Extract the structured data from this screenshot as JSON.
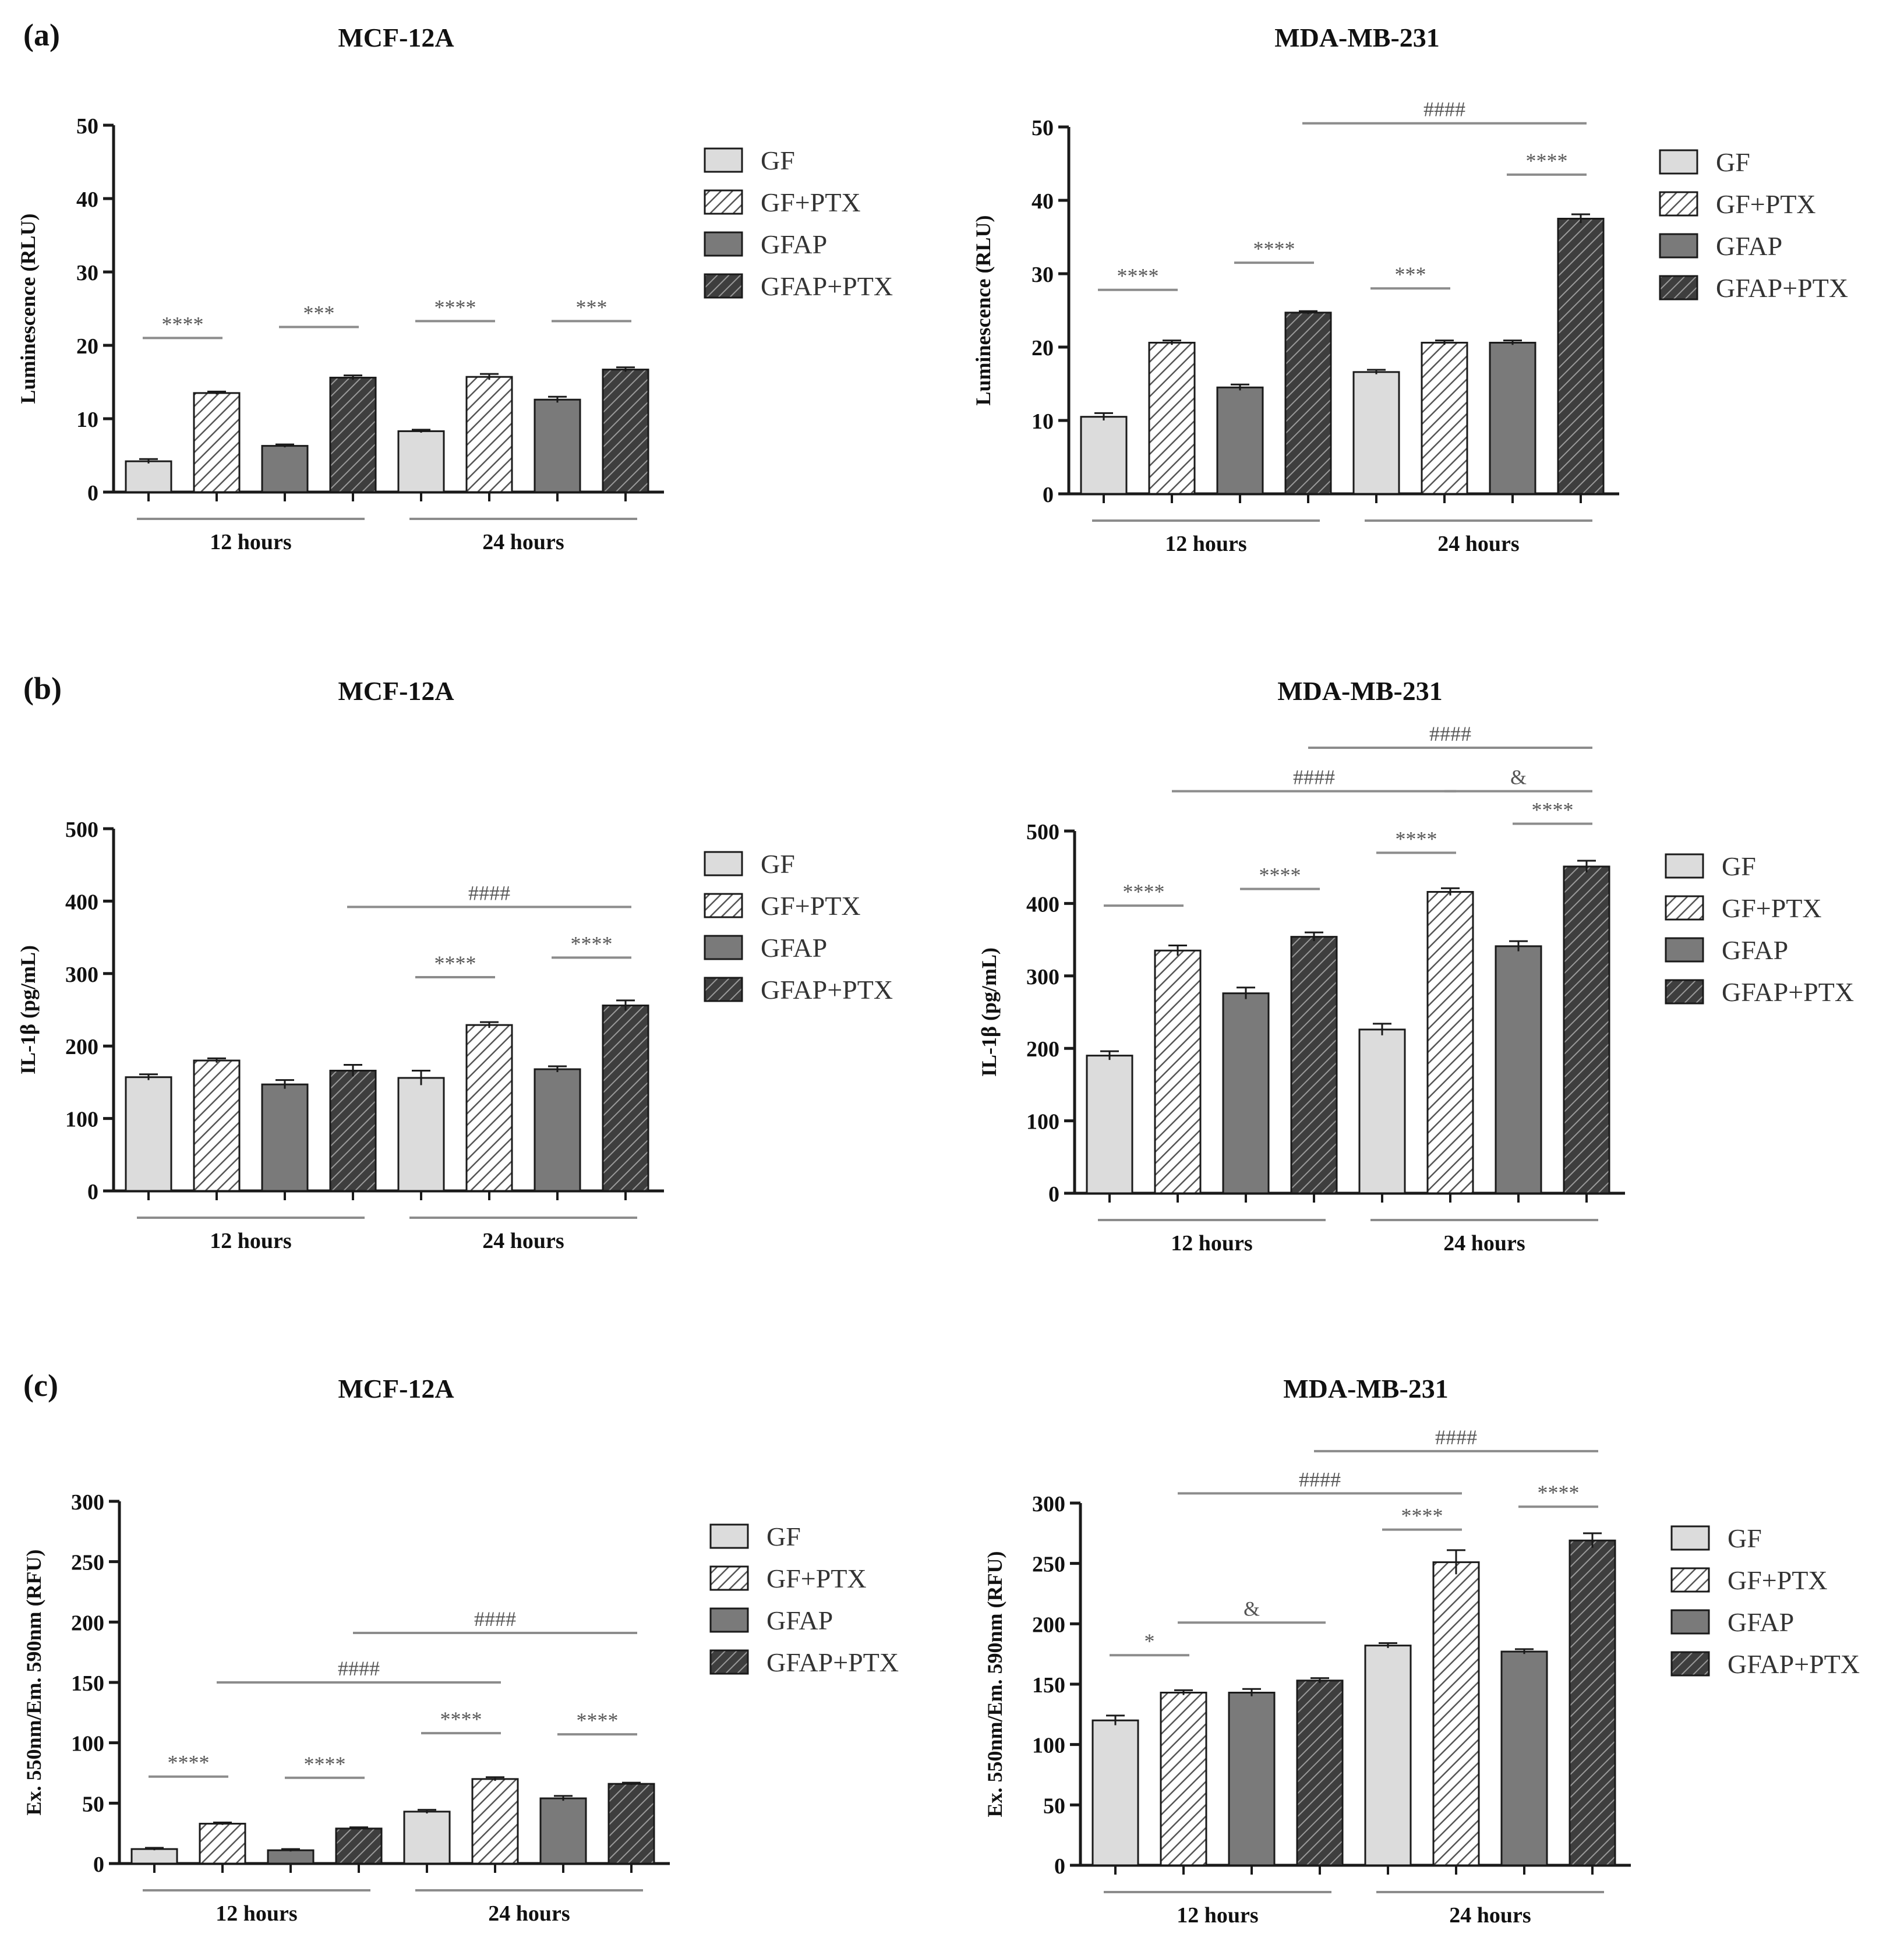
{
  "figure": {
    "legend_labels": [
      "GF",
      "GF+PTX",
      "GFAP",
      "GFAP+PTX"
    ],
    "colors": {
      "light": "#dcdcdc",
      "dark": "#7a7a7a",
      "stroke": "#1a1a1a",
      "line": "#8c8c8c"
    }
  },
  "chart_data": [
    {
      "id": "a-mcf",
      "panel_label": "(a)",
      "type": "bar",
      "title": "MCF-12A",
      "ylabel": "Luminescence (RLU)",
      "ylim": [
        0,
        50
      ],
      "yticks": [
        0,
        10,
        20,
        30,
        40,
        50
      ],
      "groups": [
        "12 hours",
        "24 hours"
      ],
      "series": [
        {
          "name": "GF",
          "values": [
            4.2,
            8.3
          ],
          "errors": [
            0.3,
            0.2
          ]
        },
        {
          "name": "GF+PTX",
          "values": [
            13.5,
            15.7
          ],
          "errors": [
            0.2,
            0.4
          ]
        },
        {
          "name": "GFAP",
          "values": [
            6.3,
            12.6
          ],
          "errors": [
            0.2,
            0.4
          ]
        },
        {
          "name": "GFAP+PTX",
          "values": [
            15.6,
            16.7
          ],
          "errors": [
            0.3,
            0.3
          ]
        }
      ],
      "annotations": [
        {
          "text": "****",
          "from": 0,
          "to": 1,
          "y": 21
        },
        {
          "text": "***",
          "from": 2,
          "to": 3,
          "y": 22.5
        },
        {
          "text": "****",
          "from": 4,
          "to": 5,
          "y": 23.3
        },
        {
          "text": "***",
          "from": 6,
          "to": 7,
          "y": 23.3
        }
      ]
    },
    {
      "id": "a-mda",
      "type": "bar",
      "title": "MDA-MB-231",
      "ylabel": "Luminescence (RLU)",
      "ylim": [
        0,
        50
      ],
      "yticks": [
        0,
        10,
        20,
        30,
        40,
        50
      ],
      "groups": [
        "12 hours",
        "24 hours"
      ],
      "series": [
        {
          "name": "GF",
          "values": [
            10.5,
            16.6
          ],
          "errors": [
            0.5,
            0.3
          ]
        },
        {
          "name": "GF+PTX",
          "values": [
            20.6,
            20.6
          ],
          "errors": [
            0.3,
            0.3
          ]
        },
        {
          "name": "GFAP",
          "values": [
            14.5,
            20.6
          ],
          "errors": [
            0.4,
            0.3
          ]
        },
        {
          "name": "GFAP+PTX",
          "values": [
            24.7,
            37.5
          ],
          "errors": [
            0.2,
            0.6
          ]
        }
      ],
      "annotations": [
        {
          "text": "****",
          "from": 0,
          "to": 1,
          "y": 27.8
        },
        {
          "text": "****",
          "from": 2,
          "to": 3,
          "y": 31.5
        },
        {
          "text": "***",
          "from": 4,
          "to": 5,
          "y": 28
        },
        {
          "text": "****",
          "from": 6,
          "to": 7,
          "y": 43.5
        },
        {
          "text": "####",
          "from": 3,
          "to": 7,
          "y": 50.5
        }
      ]
    },
    {
      "id": "b-mcf",
      "panel_label": "(b)",
      "type": "bar",
      "title": "MCF-12A",
      "ylabel": "IL-1β (pg/mL)",
      "ylim": [
        0,
        500
      ],
      "yticks": [
        0,
        100,
        200,
        300,
        400,
        500
      ],
      "groups": [
        "12 hours",
        "24 hours"
      ],
      "series": [
        {
          "name": "GF",
          "values": [
            157,
            156
          ],
          "errors": [
            4,
            10
          ]
        },
        {
          "name": "GF+PTX",
          "values": [
            180,
            229
          ],
          "errors": [
            3,
            4
          ]
        },
        {
          "name": "GFAP",
          "values": [
            147,
            168
          ],
          "errors": [
            6,
            4
          ]
        },
        {
          "name": "GFAP+PTX",
          "values": [
            166,
            256
          ],
          "errors": [
            8,
            7
          ]
        }
      ],
      "annotations": [
        {
          "text": "****",
          "from": 4,
          "to": 5,
          "y": 295
        },
        {
          "text": "****",
          "from": 6,
          "to": 7,
          "y": 322
        },
        {
          "text": "####",
          "from": 3,
          "to": 7,
          "y": 392
        }
      ]
    },
    {
      "id": "b-mda",
      "type": "bar",
      "title": "MDA-MB-231",
      "ylabel": "IL-1β (pg/mL)",
      "ylim": [
        0,
        500
      ],
      "yticks": [
        0,
        100,
        200,
        300,
        400,
        500
      ],
      "groups": [
        "12 hours",
        "24 hours"
      ],
      "series": [
        {
          "name": "GF",
          "values": [
            190,
            226
          ],
          "errors": [
            6,
            8
          ]
        },
        {
          "name": "GF+PTX",
          "values": [
            335,
            416
          ],
          "errors": [
            7,
            5
          ]
        },
        {
          "name": "GFAP",
          "values": [
            276,
            341
          ],
          "errors": [
            8,
            7
          ]
        },
        {
          "name": "GFAP+PTX",
          "values": [
            354,
            451
          ],
          "errors": [
            6,
            8
          ]
        }
      ],
      "annotations": [
        {
          "text": "****",
          "from": 0,
          "to": 1,
          "y": 397
        },
        {
          "text": "****",
          "from": 2,
          "to": 3,
          "y": 420
        },
        {
          "text": "****",
          "from": 4,
          "to": 5,
          "y": 470
        },
        {
          "text": "****",
          "from": 6,
          "to": 7,
          "y": 510
        },
        {
          "text": "&",
          "from": 5,
          "to": 7,
          "y": 555
        },
        {
          "text": "####",
          "from": 1,
          "to": 5,
          "y": 555
        },
        {
          "text": "####",
          "from": 3,
          "to": 7,
          "y": 615
        }
      ]
    },
    {
      "id": "c-mcf",
      "panel_label": "(c)",
      "type": "bar",
      "title": "MCF-12A",
      "ylabel": "Ex. 550nm/Em. 590nm (RFU)",
      "ylim": [
        0,
        300
      ],
      "yticks": [
        0,
        50,
        100,
        150,
        200,
        250,
        300
      ],
      "groups": [
        "12 hours",
        "24 hours"
      ],
      "series": [
        {
          "name": "GF",
          "values": [
            12,
            43
          ],
          "errors": [
            1,
            1.5
          ]
        },
        {
          "name": "GF+PTX",
          "values": [
            33,
            70
          ],
          "errors": [
            1,
            1.5
          ]
        },
        {
          "name": "GFAP",
          "values": [
            11,
            54
          ],
          "errors": [
            1,
            2
          ]
        },
        {
          "name": "GFAP+PTX",
          "values": [
            29,
            66
          ],
          "errors": [
            1,
            1
          ]
        }
      ],
      "annotations": [
        {
          "text": "****",
          "from": 0,
          "to": 1,
          "y": 72
        },
        {
          "text": "****",
          "from": 2,
          "to": 3,
          "y": 71
        },
        {
          "text": "****",
          "from": 4,
          "to": 5,
          "y": 108
        },
        {
          "text": "****",
          "from": 6,
          "to": 7,
          "y": 107
        },
        {
          "text": "####",
          "from": 1,
          "to": 5,
          "y": 150
        },
        {
          "text": "####",
          "from": 3,
          "to": 7,
          "y": 191
        }
      ]
    },
    {
      "id": "c-mda",
      "type": "bar",
      "title": "MDA-MB-231",
      "ylabel": "Ex. 550nm/Em. 590nm (RFU)",
      "ylim": [
        0,
        300
      ],
      "yticks": [
        0,
        50,
        100,
        150,
        200,
        250,
        300
      ],
      "groups": [
        "12 hours",
        "24 hours"
      ],
      "series": [
        {
          "name": "GF",
          "values": [
            120,
            182
          ],
          "errors": [
            4,
            2
          ]
        },
        {
          "name": "GF+PTX",
          "values": [
            143,
            251
          ],
          "errors": [
            2,
            10
          ]
        },
        {
          "name": "GFAP",
          "values": [
            143,
            177
          ],
          "errors": [
            3,
            2
          ]
        },
        {
          "name": "GFAP+PTX",
          "values": [
            153,
            269
          ],
          "errors": [
            2,
            6
          ]
        }
      ],
      "annotations": [
        {
          "text": "*",
          "from": 0,
          "to": 1,
          "y": 174
        },
        {
          "text": "&",
          "from": 1,
          "to": 3,
          "y": 201
        },
        {
          "text": "****",
          "from": 4,
          "to": 5,
          "y": 278
        },
        {
          "text": "****",
          "from": 6,
          "to": 7,
          "y": 297
        },
        {
          "text": "####",
          "from": 1,
          "to": 5,
          "y": 308
        },
        {
          "text": "####",
          "from": 3,
          "to": 7,
          "y": 343
        }
      ]
    }
  ]
}
